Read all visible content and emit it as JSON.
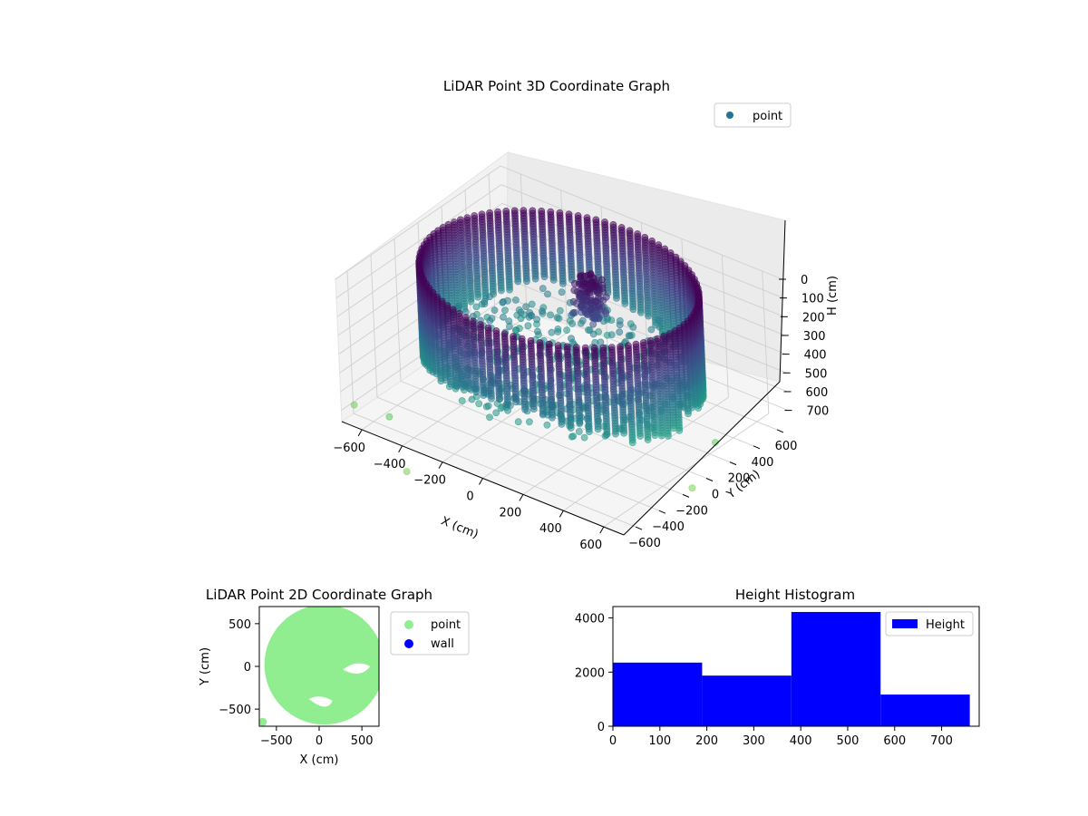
{
  "chart_data": [
    {
      "type": "scatter",
      "projection": "3d",
      "title": "LiDAR Point 3D Coordinate Graph",
      "xlabel": "X (cm)",
      "ylabel": "Y (cm)",
      "zlabel": "H (cm)",
      "xlim": [
        -700,
        700
      ],
      "ylim": [
        -700,
        700
      ],
      "zlim": [
        760,
        0
      ],
      "xticks": [
        -600,
        -400,
        -200,
        0,
        200,
        400,
        600
      ],
      "yticks": [
        -600,
        -400,
        -200,
        0,
        200,
        400,
        600
      ],
      "zticks": [
        0,
        100,
        200,
        300,
        400,
        500,
        600,
        700
      ],
      "legend": {
        "placement": "upper-right",
        "entries": [
          {
            "name": "point",
            "color": "#21788e"
          }
        ]
      },
      "colormap": "viridis",
      "structure": {
        "cylinder_radius": 600,
        "cylinder_height_range": [
          0,
          500
        ],
        "outliers": [
          [
            -520,
            -600,
            700
          ],
          [
            -720,
            -560,
            740
          ],
          [
            -260,
            -900,
            750
          ],
          [
            600,
            250,
            720
          ],
          [
            700,
            -120,
            760
          ]
        ]
      }
    },
    {
      "type": "scatter",
      "title": "LiDAR Point 2D Coordinate Graph",
      "xlabel": "X (cm)",
      "ylabel": "Y (cm)",
      "xlim": [
        -700,
        700
      ],
      "ylim": [
        -700,
        700
      ],
      "xticks": [
        -500,
        0,
        500
      ],
      "yticks": [
        -500,
        0,
        500
      ],
      "legend": {
        "placement": "outside-right",
        "entries": [
          {
            "name": "point",
            "color": "#90ee90"
          },
          {
            "name": "wall",
            "color": "#0000ff"
          }
        ]
      }
    },
    {
      "type": "bar",
      "title": "Height Histogram",
      "bins": [
        [
          0,
          190
        ],
        [
          190,
          380
        ],
        [
          380,
          570
        ],
        [
          570,
          760
        ]
      ],
      "values": [
        2350,
        1870,
        4220,
        1170
      ],
      "xlim": [
        0,
        780
      ],
      "ylim": [
        0,
        4420
      ],
      "xticks": [
        0,
        100,
        200,
        300,
        400,
        500,
        600,
        700
      ],
      "yticks": [
        0,
        2000,
        4000
      ],
      "color": "#0000ff",
      "legend": {
        "placement": "upper-right",
        "entries": [
          {
            "name": "Height",
            "color": "#0000ff"
          }
        ]
      }
    }
  ]
}
